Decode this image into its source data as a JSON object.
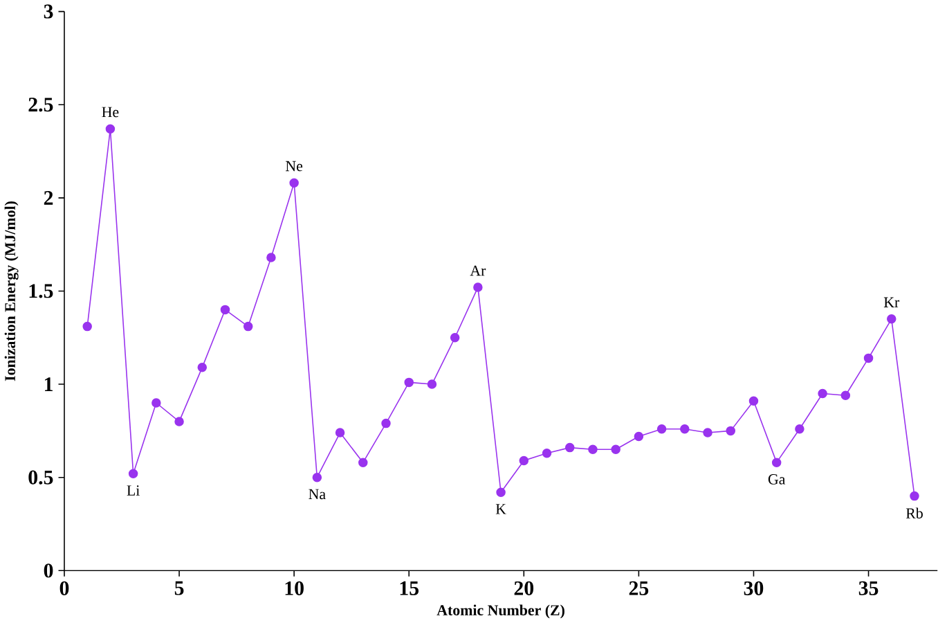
{
  "chart_data": {
    "type": "line",
    "xlabel": "Atomic Number (Z)",
    "ylabel": "Ionization Energy (MJ/mol)",
    "x": [
      1,
      2,
      3,
      4,
      5,
      6,
      7,
      8,
      9,
      10,
      11,
      12,
      13,
      14,
      15,
      16,
      17,
      18,
      19,
      20,
      21,
      22,
      23,
      24,
      25,
      26,
      27,
      28,
      29,
      30,
      31,
      32,
      33,
      34,
      35,
      36,
      37
    ],
    "series": [
      {
        "color": "#9933ee",
        "values": [
          1.31,
          2.37,
          0.52,
          0.9,
          0.8,
          1.09,
          1.4,
          1.31,
          1.68,
          2.08,
          0.5,
          0.74,
          0.58,
          0.79,
          1.01,
          1.0,
          1.25,
          1.52,
          0.42,
          0.59,
          0.63,
          0.66,
          0.65,
          0.65,
          0.72,
          0.76,
          0.76,
          0.74,
          0.75,
          0.91,
          0.58,
          0.76,
          0.95,
          0.94,
          1.14,
          1.35,
          0.4
        ]
      }
    ],
    "xlim": [
      0,
      38
    ],
    "ylim": [
      0,
      3
    ],
    "xticks": [
      0,
      5,
      10,
      15,
      20,
      25,
      30,
      35
    ],
    "yticks": [
      0,
      0.5,
      1,
      1.5,
      2,
      2.5,
      3
    ],
    "marker": "circle",
    "grid": false,
    "annotations": [
      {
        "text": "He",
        "x": 2,
        "y": 2.37
      },
      {
        "text": "Li",
        "x": 3,
        "y": 0.52
      },
      {
        "text": "Ne",
        "x": 10,
        "y": 2.08
      },
      {
        "text": "Na",
        "x": 11,
        "y": 0.5
      },
      {
        "text": "Ar",
        "x": 18,
        "y": 1.52
      },
      {
        "text": "K",
        "x": 19,
        "y": 0.42
      },
      {
        "text": "Ga",
        "x": 31,
        "y": 0.58
      },
      {
        "text": "Kr",
        "x": 36,
        "y": 1.35
      },
      {
        "text": "Rb",
        "x": 37,
        "y": 0.4
      }
    ]
  }
}
